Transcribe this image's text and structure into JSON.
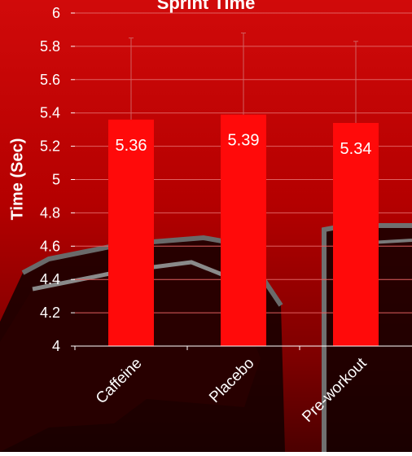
{
  "chart_data": {
    "type": "bar",
    "title": "Sprint Time",
    "ylabel": "Time (Sec)",
    "xlabel": "",
    "categories": [
      "Caffeine",
      "Placebo",
      "Pre-workout"
    ],
    "values": [
      5.36,
      5.39,
      5.34
    ],
    "data_labels": [
      "5.36",
      "5.39",
      "5.34"
    ],
    "error_upper": [
      5.85,
      5.88,
      5.83
    ],
    "ylim": [
      4,
      6
    ],
    "yticks": [
      4,
      4.2,
      4.4,
      4.6,
      4.8,
      5,
      5.2,
      5.4,
      5.6,
      5.8,
      6
    ],
    "ytick_labels": [
      "4",
      "4.2",
      "4.4",
      "4.6",
      "4.8",
      "5",
      "5.2",
      "5.4",
      "5.6",
      "5.8",
      "6"
    ],
    "grid": true,
    "legend": "none",
    "colors": {
      "bar": "#ff0a0a",
      "text": "#ffffff",
      "gridline": "#e06060",
      "axis": "#ffffff",
      "error_bar": "#d06060",
      "background_top": "#d10a0a",
      "background_bottom": "#4c0000"
    }
  }
}
